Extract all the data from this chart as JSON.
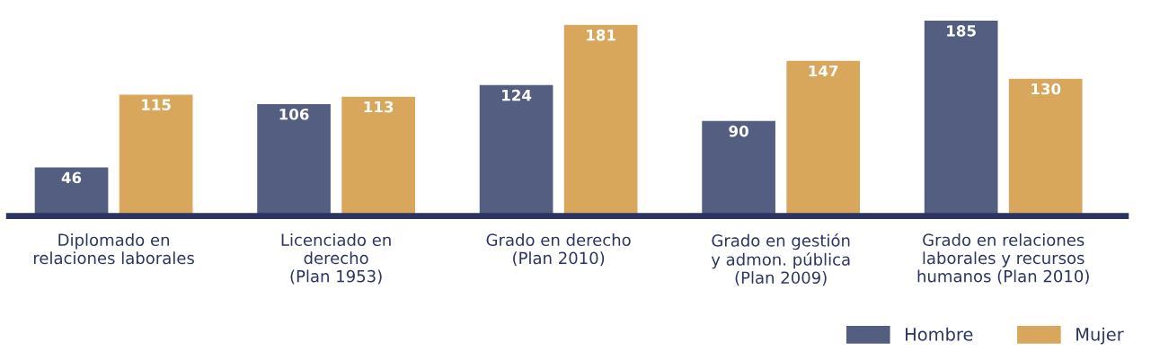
{
  "chart_data": {
    "type": "bar",
    "categories": [
      "Diplomado en\nrelaciones laborales",
      "Licenciado en\nderecho\n(Plan 1953)",
      "Grado en derecho\n(Plan 2010)",
      "Grado en gestión\ny admon. pública\n(Plan 2009)",
      "Grado en relaciones\nlaborales y recursos\nhumanos (Plan 2010)"
    ],
    "series": [
      {
        "name": "Hombre",
        "color": "#545e80",
        "values": [
          46,
          106,
          124,
          90,
          185
        ]
      },
      {
        "name": "Mujer",
        "color": "#d9a75c",
        "values": [
          115,
          113,
          181,
          147,
          130
        ]
      }
    ],
    "data_labels": true,
    "legend": "bottom right",
    "grid": false
  }
}
